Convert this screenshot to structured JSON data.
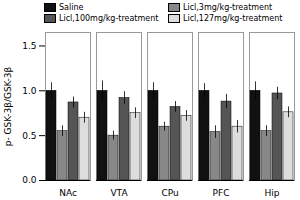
{
  "chart_data": {
    "type": "bar",
    "categories": [
      "NAc",
      "VTA",
      "CPu",
      "PFC",
      "Hip"
    ],
    "series": [
      {
        "name": "Saline",
        "color": "#111111",
        "values": [
          1.0,
          1.0,
          1.0,
          1.0,
          1.0
        ],
        "errors": [
          0.09,
          0.11,
          0.09,
          0.08,
          0.1
        ]
      },
      {
        "name": "Licl,3mg/kg-treatment",
        "color": "#888888",
        "values": [
          0.55,
          0.5,
          0.6,
          0.54,
          0.55
        ],
        "errors": [
          0.06,
          0.05,
          0.05,
          0.07,
          0.06
        ]
      },
      {
        "name": "Licl,100mg/kg-treatment",
        "color": "#555555",
        "values": [
          0.87,
          0.92,
          0.82,
          0.88,
          0.97
        ],
        "errors": [
          0.06,
          0.07,
          0.06,
          0.08,
          0.07
        ]
      },
      {
        "name": "Licl,127mg/kg-treatment",
        "color": "#dddddd",
        "values": [
          0.7,
          0.75,
          0.72,
          0.6,
          0.76
        ],
        "errors": [
          0.06,
          0.06,
          0.06,
          0.07,
          0.06
        ]
      }
    ],
    "ylabel": "p- GSK-3β/GSK-3β",
    "ylim": [
      0,
      1.65
    ],
    "yticks": [
      {
        "value": 0.0,
        "label": "0.0"
      },
      {
        "value": 0.5,
        "label": "0.5"
      },
      {
        "value": 1.0,
        "label": "1.0"
      },
      {
        "value": 1.5,
        "label": "1.5"
      }
    ]
  }
}
